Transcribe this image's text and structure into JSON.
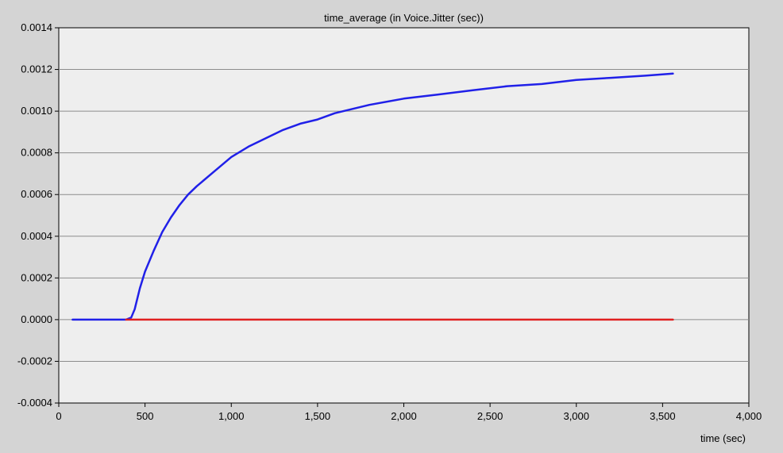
{
  "chart_data": {
    "type": "line",
    "title": "time_average (in Voice.Jitter (sec))",
    "xlabel": "time (sec)",
    "ylabel": "",
    "xlim": [
      0,
      4000
    ],
    "ylim": [
      -0.0004,
      0.0014
    ],
    "x_ticks": [
      0,
      500,
      1000,
      1500,
      2000,
      2500,
      3000,
      3500,
      4000
    ],
    "x_tick_labels": [
      "0",
      "500",
      "1,000",
      "1,500",
      "2,000",
      "2,500",
      "3,000",
      "3,500",
      "4,000"
    ],
    "y_ticks": [
      -0.0004,
      -0.0002,
      0,
      0.0002,
      0.0004,
      0.0006,
      0.0008,
      0.001,
      0.0012,
      0.0014
    ],
    "y_tick_labels": [
      "-0.0004",
      "-0.0002",
      "0.0000",
      "0.0002",
      "0.0004",
      "0.0006",
      "0.0008",
      "0.0010",
      "0.0012",
      "0.0014"
    ],
    "grid": "horizontal",
    "series": [
      {
        "color": "#2020e8",
        "points": [
          [
            80,
            0
          ],
          [
            300,
            0
          ],
          [
            390,
            0
          ],
          [
            420,
            1e-05
          ],
          [
            440,
            5e-05
          ],
          [
            470,
            0.00015
          ],
          [
            500,
            0.00023
          ],
          [
            550,
            0.00033
          ],
          [
            600,
            0.00042
          ],
          [
            650,
            0.00049
          ],
          [
            700,
            0.00055
          ],
          [
            750,
            0.0006
          ],
          [
            800,
            0.00064
          ],
          [
            900,
            0.00071
          ],
          [
            1000,
            0.00078
          ],
          [
            1100,
            0.00083
          ],
          [
            1200,
            0.00087
          ],
          [
            1300,
            0.00091
          ],
          [
            1400,
            0.00094
          ],
          [
            1500,
            0.00096
          ],
          [
            1600,
            0.00099
          ],
          [
            1800,
            0.00103
          ],
          [
            2000,
            0.00106
          ],
          [
            2200,
            0.00108
          ],
          [
            2400,
            0.0011
          ],
          [
            2600,
            0.00112
          ],
          [
            2800,
            0.00113
          ],
          [
            3000,
            0.00115
          ],
          [
            3200,
            0.00116
          ],
          [
            3400,
            0.00117
          ],
          [
            3560,
            0.00118
          ]
        ]
      },
      {
        "color": "#e02020",
        "points": [
          [
            390,
            0
          ],
          [
            3560,
            0
          ]
        ]
      }
    ]
  },
  "colors": {
    "background": "#d4d4d4",
    "plot_area": "#eeeeee",
    "grid": "#8c8c8c"
  }
}
